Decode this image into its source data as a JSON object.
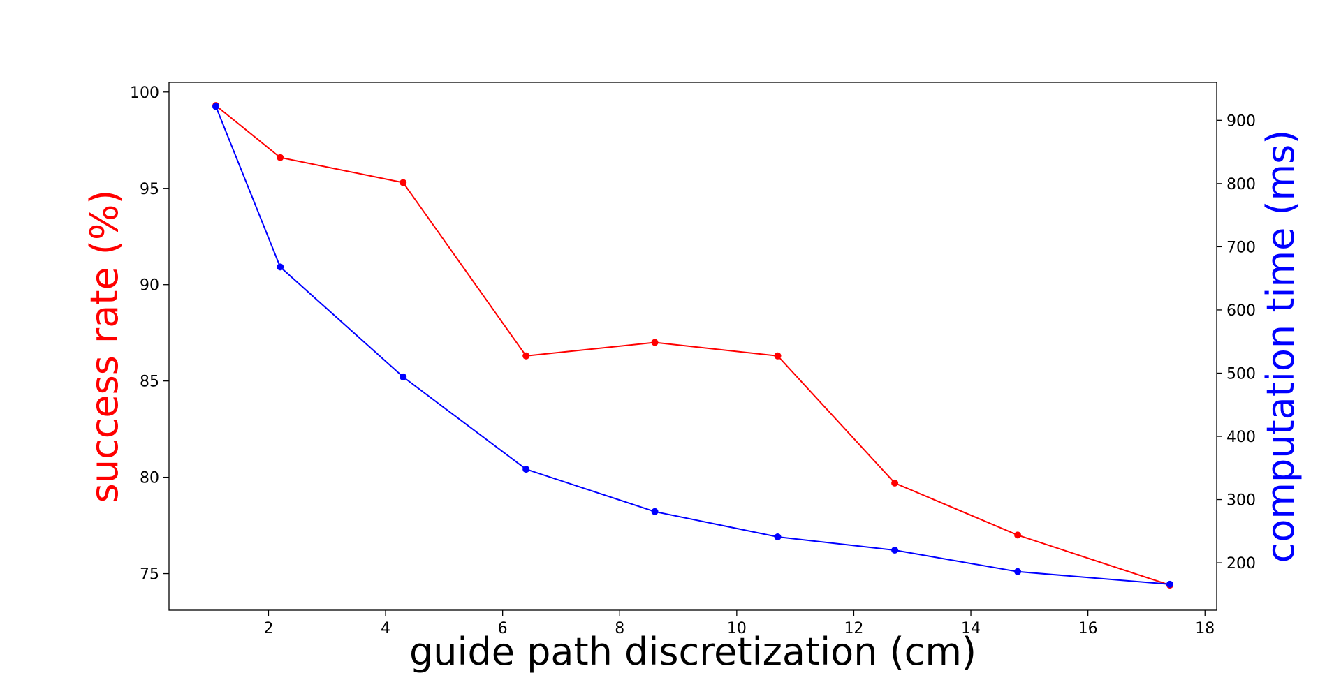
{
  "chart_data": {
    "type": "line",
    "title": "",
    "xlabel": "guide path discretization (cm)",
    "ylabel_left": "success rate (%)",
    "ylabel_right": "computation time (ms)",
    "xlim": [
      0.3,
      18.2
    ],
    "ylim_left": [
      73.1,
      100.5
    ],
    "ylim_right": [
      125,
      960
    ],
    "x_ticks": [
      2,
      4,
      6,
      8,
      10,
      12,
      14,
      16,
      18
    ],
    "y_left_ticks": [
      75,
      80,
      85,
      90,
      95,
      100
    ],
    "y_right_ticks": [
      200,
      300,
      400,
      500,
      600,
      700,
      800,
      900
    ],
    "grid": false,
    "x": [
      1.1,
      2.2,
      4.3,
      6.4,
      8.6,
      10.7,
      12.7,
      14.8,
      17.4
    ],
    "series": [
      {
        "axis": "left",
        "color": "#ff0000",
        "values": [
          99.3,
          96.6,
          95.3,
          86.3,
          87.0,
          86.3,
          79.7,
          77.0,
          74.4
        ]
      },
      {
        "axis": "right",
        "color": "#0000ff",
        "values": [
          922,
          668,
          494,
          348,
          281,
          241,
          220,
          186,
          166
        ]
      }
    ]
  }
}
